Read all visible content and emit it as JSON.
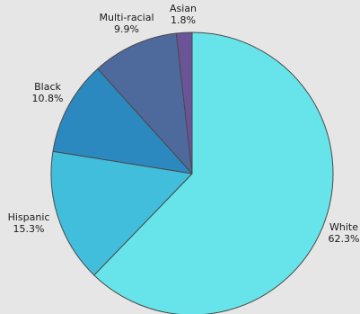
{
  "chart_data": {
    "type": "pie",
    "title": "",
    "start_angle_deg": 0,
    "direction": "clockwise",
    "slices": [
      {
        "label": "White",
        "value": 62.3,
        "value_label": "62.3%",
        "color": "#67e3ea"
      },
      {
        "label": "Hispanic",
        "value": 15.3,
        "value_label": "15.3%",
        "color": "#42bedd"
      },
      {
        "label": "Black",
        "value": 10.8,
        "value_label": "10.8%",
        "color": "#2b89bf"
      },
      {
        "label": "Multi-racial",
        "value": 9.9,
        "value_label": "9.9%",
        "color": "#4e6a9c"
      },
      {
        "label": "Asian",
        "value": 1.8,
        "value_label": "1.8%",
        "color": "#6a5397"
      }
    ]
  }
}
